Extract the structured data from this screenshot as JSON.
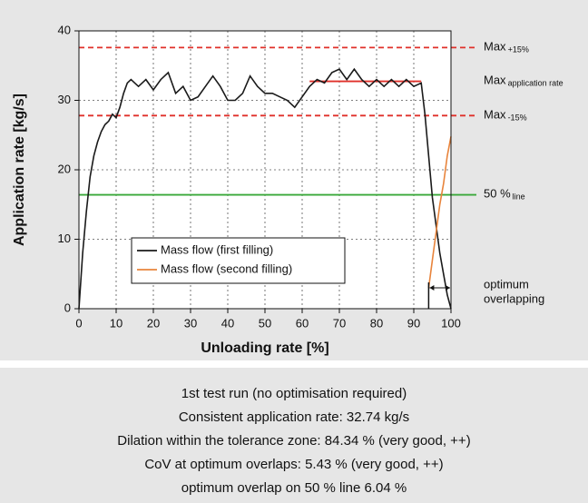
{
  "chart_data": {
    "type": "line",
    "x_label": "Unloading rate [%]",
    "y_label": "Application rate [kg/s]",
    "xlim": [
      0,
      100
    ],
    "xticks": [
      0,
      10,
      20,
      30,
      40,
      50,
      60,
      70,
      80,
      90,
      100
    ],
    "ylim": [
      0,
      40
    ],
    "yticks": [
      0,
      10,
      20,
      30,
      40
    ],
    "grid": true,
    "legend": "lower left",
    "series": [
      {
        "name": "Mass flow (first filling)",
        "color": "#1a1a1a",
        "x": [
          0,
          1,
          2,
          3,
          4,
          5,
          6,
          7,
          8,
          9,
          10,
          11,
          12,
          13,
          14,
          15,
          16,
          18,
          20,
          22,
          24,
          26,
          28,
          30,
          32,
          34,
          36,
          38,
          40,
          42,
          44,
          46,
          48,
          50,
          52,
          54,
          56,
          58,
          60,
          62,
          64,
          66,
          68,
          70,
          72,
          74,
          76,
          78,
          80,
          82,
          84,
          86,
          88,
          90,
          92,
          93,
          94,
          95,
          96,
          97,
          98,
          99,
          100
        ],
        "values": [
          0,
          8,
          14,
          19,
          22,
          24,
          25.5,
          26.5,
          27,
          28,
          27.5,
          29,
          31,
          32.5,
          33,
          32.5,
          32,
          33,
          31.5,
          33,
          34,
          31,
          32,
          30,
          30.5,
          32,
          33.5,
          32,
          30,
          30,
          31,
          33.5,
          32,
          31,
          31,
          30.5,
          30,
          29,
          30.5,
          32,
          33,
          32.5,
          34,
          34.5,
          33,
          34.5,
          33,
          32,
          33,
          32,
          33,
          32,
          33,
          32,
          32.5,
          28,
          22,
          16,
          12,
          8,
          5,
          2,
          0
        ]
      },
      {
        "name": "Mass flow (second filling)",
        "color": "#e8843c",
        "x": [
          94,
          95,
          96,
          97,
          98,
          99,
          100
        ],
        "values": [
          3,
          7,
          11,
          15,
          18,
          22,
          24.8
        ]
      }
    ],
    "reference_lines": [
      {
        "value": 37.6,
        "color": "#e0302a",
        "style": "dashed",
        "label": "Max",
        "label_sub": "+15%"
      },
      {
        "value": 32.74,
        "color": "#e0302a",
        "style": "solid",
        "x_range": [
          62,
          92
        ],
        "label": "Max",
        "label_sub": "application rate"
      },
      {
        "value": 27.8,
        "color": "#e0302a",
        "style": "dashed",
        "label": "Max",
        "label_sub": "-15%"
      },
      {
        "value": 16.4,
        "color": "#3aa83a",
        "style": "solid",
        "label": "50 %",
        "label_sub": "line"
      }
    ],
    "overlap_arrow": {
      "x_range": [
        94,
        100
      ],
      "y": 3,
      "label_lines": [
        "optimum",
        "overlapping"
      ]
    }
  },
  "caption": {
    "lines": [
      "1st test run (no optimisation required)",
      "Consistent application rate: 32.74 kg/s",
      "Dilation within the tolerance zone: 84.34 % (very good, ++)",
      "CoV at optimum overlaps: 5.43 % (very good, ++)",
      "optimum overlap on 50 % line 6.04 %"
    ]
  }
}
